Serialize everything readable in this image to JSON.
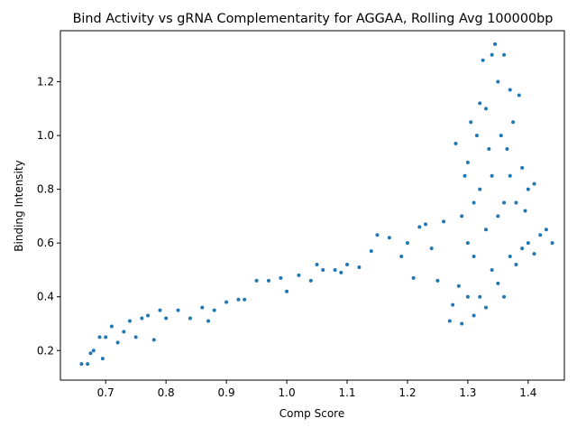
{
  "chart_data": {
    "type": "scatter",
    "title": "Bind Activity vs gRNA Complementarity for AGGAA, Rolling Avg 100000bp",
    "xlabel": "Comp Score",
    "ylabel": "Binding Intensity",
    "xlim": [
      0.625,
      1.46
    ],
    "ylim": [
      0.09,
      1.39
    ],
    "x_ticks": [
      0.7,
      0.8,
      0.9,
      1.0,
      1.1,
      1.2,
      1.3,
      1.4
    ],
    "y_ticks": [
      0.2,
      0.4,
      0.6,
      0.8,
      1.0,
      1.2
    ],
    "grid": false,
    "marker_color": "#1f77b4",
    "series": [
      {
        "x": [
          0.66,
          0.67,
          0.675,
          0.68,
          0.69,
          0.695,
          0.7,
          0.71,
          0.72,
          0.73,
          0.74,
          0.75,
          0.76,
          0.77,
          0.78,
          0.79,
          0.8,
          0.82,
          0.84,
          0.86,
          0.87,
          0.88,
          0.9,
          0.92,
          0.93,
          0.95,
          0.97,
          0.99,
          1.0,
          1.02,
          1.04,
          1.05,
          1.06,
          1.08,
          1.09,
          1.1,
          1.12,
          1.14,
          1.15,
          1.17,
          1.19,
          1.2,
          1.21,
          1.22,
          1.23,
          1.24,
          1.25,
          1.26,
          1.27,
          1.275,
          1.28,
          1.285,
          1.29,
          1.29,
          1.295,
          1.3,
          1.3,
          1.3,
          1.305,
          1.31,
          1.31,
          1.31,
          1.315,
          1.32,
          1.32,
          1.32,
          1.325,
          1.33,
          1.33,
          1.33,
          1.335,
          1.34,
          1.34,
          1.34,
          1.345,
          1.35,
          1.35,
          1.35,
          1.355,
          1.36,
          1.36,
          1.36,
          1.365,
          1.37,
          1.37,
          1.37,
          1.375,
          1.38,
          1.38,
          1.385,
          1.39,
          1.39,
          1.395,
          1.4,
          1.4,
          1.41,
          1.41,
          1.42,
          1.43,
          1.44
        ],
        "y": [
          0.15,
          0.15,
          0.19,
          0.2,
          0.25,
          0.17,
          0.25,
          0.29,
          0.23,
          0.27,
          0.31,
          0.25,
          0.32,
          0.33,
          0.24,
          0.35,
          0.32,
          0.35,
          0.32,
          0.36,
          0.31,
          0.35,
          0.38,
          0.39,
          0.39,
          0.46,
          0.46,
          0.47,
          0.42,
          0.48,
          0.46,
          0.52,
          0.5,
          0.5,
          0.49,
          0.52,
          0.51,
          0.57,
          0.63,
          0.62,
          0.55,
          0.6,
          0.47,
          0.66,
          0.67,
          0.58,
          0.46,
          0.68,
          0.31,
          0.37,
          0.97,
          0.44,
          0.3,
          0.7,
          0.85,
          0.4,
          0.6,
          0.9,
          1.05,
          0.33,
          0.55,
          0.75,
          1.0,
          1.12,
          0.4,
          0.8,
          1.28,
          0.36,
          0.65,
          1.1,
          0.95,
          0.5,
          0.85,
          1.3,
          1.34,
          0.45,
          0.7,
          1.2,
          1.0,
          0.4,
          0.75,
          1.3,
          0.95,
          0.55,
          0.85,
          1.17,
          1.05,
          0.52,
          0.75,
          1.15,
          0.58,
          0.88,
          0.72,
          0.6,
          0.8,
          0.56,
          0.82,
          0.63,
          0.65,
          0.6
        ]
      }
    ]
  }
}
